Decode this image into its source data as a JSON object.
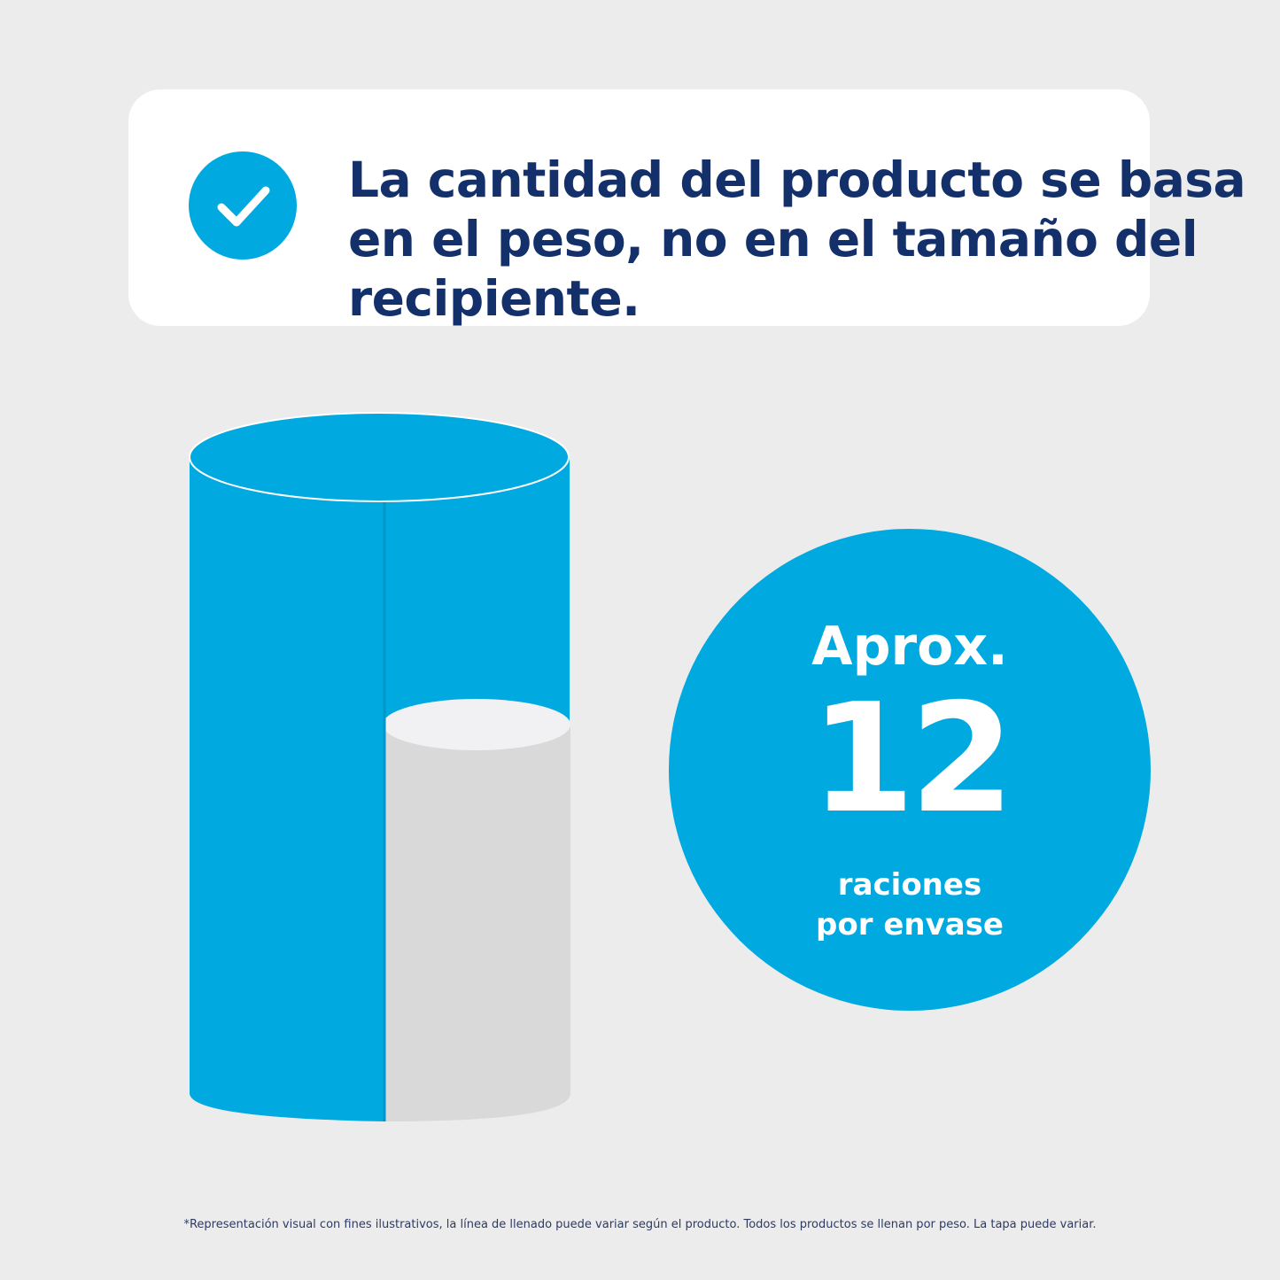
{
  "banner": {
    "icon": "checkmark-icon",
    "headline": "La cantidad del producto se basa en el peso, no en el tamaño del recipiente."
  },
  "serving": {
    "prefix": "Aprox.",
    "number": "12",
    "caption_line1": "raciones",
    "caption_line2": "por envase"
  },
  "container_illustration": {
    "icon": "cylinder-cutaway-icon"
  },
  "footnote": "*Representación visual con fines ilustrativos, la línea de llenado puede variar según el producto. Todos los productos se llenan por peso. La tapa puede variar.",
  "colors": {
    "background": "#ececec",
    "accent_blue": "#00a9e0",
    "headline_navy": "#13306b",
    "fill_grey": "#d9d9d9"
  }
}
